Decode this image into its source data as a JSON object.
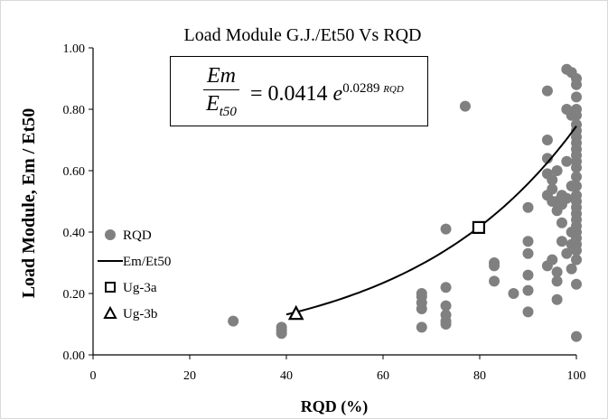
{
  "chart_data": {
    "type": "scatter",
    "title": "Load Module G.J./Et50  Vs  RQD",
    "xlabel": "RQD (%)",
    "ylabel": "Load Module, Em / Et50",
    "xlim": [
      0,
      100
    ],
    "ylim": [
      0,
      1.0
    ],
    "x_ticks": [
      "0",
      "20",
      "40",
      "60",
      "80",
      "100"
    ],
    "y_ticks": [
      "0.00",
      "0.20",
      "0.40",
      "0.60",
      "0.80",
      "1.00"
    ],
    "grid": false,
    "legend_position": "left",
    "equation": {
      "lhs_num": "Em",
      "lhs_den": "E",
      "lhs_den_sub": "t50",
      "rhs_coef": "= 0.0414",
      "rhs_base": "e",
      "rhs_exp": "0.0289",
      "rhs_exp_var": "RQD"
    },
    "fit": {
      "a": 0.0414,
      "b": 0.0289,
      "x_range": [
        40,
        100
      ]
    },
    "series": [
      {
        "name": "RQD",
        "marker": "circle",
        "color": "#808080",
        "points": [
          [
            29,
            0.11
          ],
          [
            39,
            0.07
          ],
          [
            39,
            0.08
          ],
          [
            39,
            0.09
          ],
          [
            68,
            0.09
          ],
          [
            68,
            0.15
          ],
          [
            68,
            0.17
          ],
          [
            68,
            0.19
          ],
          [
            68,
            0.2
          ],
          [
            73,
            0.1
          ],
          [
            73,
            0.11
          ],
          [
            73,
            0.13
          ],
          [
            73,
            0.16
          ],
          [
            73,
            0.22
          ],
          [
            73,
            0.41
          ],
          [
            77,
            0.81
          ],
          [
            83,
            0.24
          ],
          [
            83,
            0.29
          ],
          [
            83,
            0.3
          ],
          [
            87,
            0.2
          ],
          [
            90,
            0.14
          ],
          [
            90,
            0.21
          ],
          [
            90,
            0.26
          ],
          [
            90,
            0.33
          ],
          [
            90,
            0.37
          ],
          [
            90,
            0.48
          ],
          [
            94,
            0.29
          ],
          [
            94,
            0.52
          ],
          [
            94,
            0.59
          ],
          [
            94,
            0.64
          ],
          [
            94,
            0.7
          ],
          [
            94,
            0.86
          ],
          [
            95,
            0.31
          ],
          [
            95,
            0.5
          ],
          [
            95,
            0.54
          ],
          [
            95,
            0.57
          ],
          [
            96,
            0.18
          ],
          [
            96,
            0.24
          ],
          [
            96,
            0.27
          ],
          [
            96,
            0.47
          ],
          [
            96,
            0.5
          ],
          [
            96,
            0.6
          ],
          [
            97,
            0.37
          ],
          [
            97,
            0.43
          ],
          [
            97,
            0.49
          ],
          [
            97,
            0.52
          ],
          [
            98,
            0.33
          ],
          [
            98,
            0.51
          ],
          [
            98,
            0.63
          ],
          [
            98,
            0.8
          ],
          [
            98,
            0.93
          ],
          [
            99,
            0.28
          ],
          [
            99,
            0.36
          ],
          [
            99,
            0.4
          ],
          [
            99,
            0.55
          ],
          [
            99,
            0.78
          ],
          [
            99,
            0.92
          ],
          [
            100,
            0.06
          ],
          [
            100,
            0.23
          ],
          [
            100,
            0.31
          ],
          [
            100,
            0.34
          ],
          [
            100,
            0.36
          ],
          [
            100,
            0.38
          ],
          [
            100,
            0.4
          ],
          [
            100,
            0.42
          ],
          [
            100,
            0.44
          ],
          [
            100,
            0.46
          ],
          [
            100,
            0.48
          ],
          [
            100,
            0.5
          ],
          [
            100,
            0.52
          ],
          [
            100,
            0.55
          ],
          [
            100,
            0.58
          ],
          [
            100,
            0.61
          ],
          [
            100,
            0.63
          ],
          [
            100,
            0.65
          ],
          [
            100,
            0.67
          ],
          [
            100,
            0.69
          ],
          [
            100,
            0.71
          ],
          [
            100,
            0.73
          ],
          [
            100,
            0.75
          ],
          [
            100,
            0.78
          ],
          [
            100,
            0.8
          ],
          [
            100,
            0.84
          ],
          [
            100,
            0.88
          ],
          [
            100,
            0.9
          ]
        ]
      },
      {
        "name": "Em/Et50",
        "marker": "line",
        "color": "#000000"
      },
      {
        "name": "Ug-3a",
        "marker": "square",
        "color": "#000000",
        "points": [
          [
            79.8,
            0.415
          ]
        ]
      },
      {
        "name": "Ug-3b",
        "marker": "triangle",
        "color": "#000000",
        "points": [
          [
            42,
            0.135
          ]
        ]
      }
    ]
  }
}
